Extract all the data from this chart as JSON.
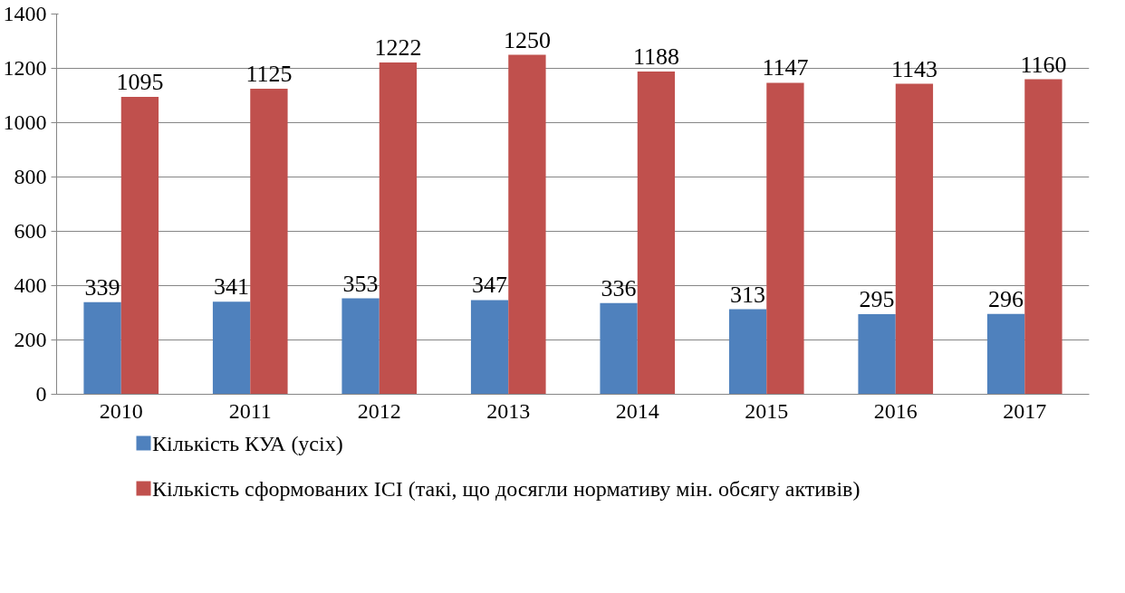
{
  "chart_data": {
    "type": "bar",
    "categories": [
      "2010",
      "2011",
      "2012",
      "2013",
      "2014",
      "2015",
      "2016",
      "2017"
    ],
    "series": [
      {
        "name": "Кількість КУА (усіх)",
        "color": "#4f81bd",
        "values": [
          339,
          341,
          353,
          347,
          336,
          313,
          295,
          296
        ]
      },
      {
        "name": "Кількість сформованих ІСІ (такі, що досягли нормативу мін. обсягу активів)",
        "color": "#c0504d",
        "values": [
          1095,
          1125,
          1222,
          1250,
          1188,
          1147,
          1143,
          1160
        ]
      }
    ],
    "ylim": [
      0,
      1400
    ],
    "yticks": [
      0,
      200,
      400,
      600,
      800,
      1000,
      1200,
      1400
    ],
    "grid": "y",
    "legend": "bottom",
    "data_labels": true
  }
}
